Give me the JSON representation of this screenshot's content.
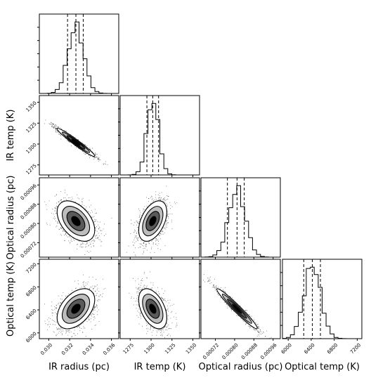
{
  "chart_data": {
    "type": "corner",
    "parameters": [
      {
        "name": "IR radius (pc)",
        "ticks": [
          "0.030",
          "0.032",
          "0.034",
          "0.036"
        ],
        "range": [
          0.0291,
          0.0367
        ],
        "quantiles": [
          0.0318,
          0.0326,
          0.0333
        ],
        "mode": 0.0326
      },
      {
        "name": "IR temp (K)",
        "ticks": [
          "1275",
          "1300",
          "1325",
          "1350"
        ],
        "range": [
          1263,
          1358
        ],
        "quantiles": [
          1295,
          1302,
          1309
        ],
        "mode": 1302
      },
      {
        "name": "Optical radius (pc)",
        "ticks": [
          "0.00072",
          "0.00080",
          "0.00088",
          "0.00096"
        ],
        "range": [
          0.00066,
          0.00099
        ],
        "quantiles": [
          0.00077,
          0.00081,
          0.00084
        ],
        "mode": 0.00081
      },
      {
        "name": "Optical temp (K)",
        "ticks": [
          "6000",
          "6400",
          "6800",
          "7200"
        ],
        "range": [
          5900,
          7280
        ],
        "quantiles": [
          6270,
          6420,
          6560
        ],
        "mode": 6420
      }
    ],
    "ylabels": [
      "IR temp (K)",
      "Optical radius (pc)",
      "Optical temp (K)"
    ],
    "correlations": [
      {
        "pair": [
          "IR radius (pc)",
          "IR temp (K)"
        ],
        "r": -0.97
      },
      {
        "pair": [
          "IR radius (pc)",
          "Optical radius (pc)"
        ],
        "r": -0.45
      },
      {
        "pair": [
          "IR temp (K)",
          "Optical radius (pc)"
        ],
        "r": 0.45
      },
      {
        "pair": [
          "IR radius (pc)",
          "Optical temp (K)"
        ],
        "r": 0.45
      },
      {
        "pair": [
          "IR temp (K)",
          "Optical temp (K)"
        ],
        "r": -0.45
      },
      {
        "pair": [
          "Optical radius (pc)",
          "Optical temp (K)"
        ],
        "r": -0.97
      }
    ],
    "histogram_bins": 20,
    "contour_levels": 4,
    "colors": {
      "line": "#000000",
      "fill_dark": "#000000",
      "fill_mid": "#5a5a5a",
      "fill_light": "#bdbdbd",
      "contour_core": "#ffffff"
    }
  }
}
